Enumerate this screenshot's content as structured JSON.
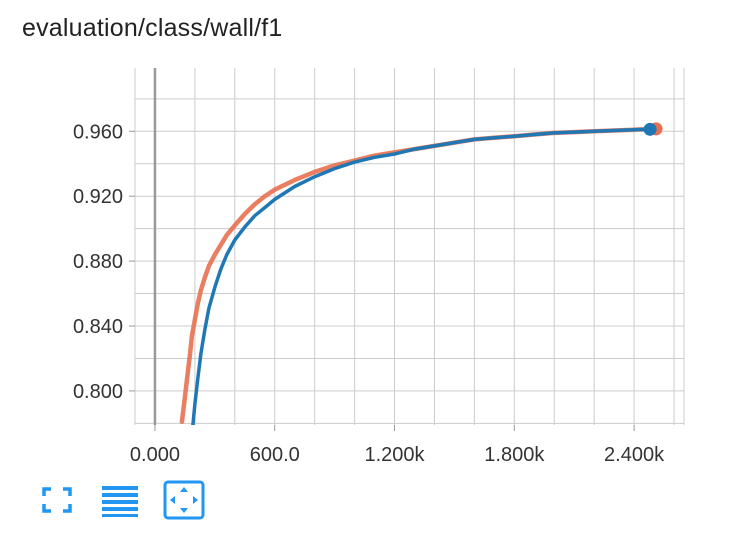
{
  "title": "evaluation/class/wall/f1",
  "toolbar": {
    "buttons": [
      {
        "name": "expand-chart-button",
        "icon": "fullscreen-icon"
      },
      {
        "name": "toggle-log-scale-button",
        "icon": "list-lines-icon"
      },
      {
        "name": "fit-domain-button",
        "icon": "fit-to-data-icon"
      }
    ]
  },
  "colors": {
    "accent": "#2196f3",
    "smoothed_series": "#1f77b4",
    "raw_series": "#e8704f",
    "grid": "#cccccc",
    "zero_line": "#999999"
  },
  "chart_data": {
    "type": "line",
    "title": "evaluation/class/wall/f1",
    "xlabel": "",
    "ylabel": "",
    "xlim": [
      -100,
      2650
    ],
    "ylim": [
      0.779,
      0.999
    ],
    "x_ticks": [
      0,
      600,
      1200,
      1800,
      2400
    ],
    "x_tick_labels": [
      "0.000",
      "600.0",
      "1.200k",
      "1.800k",
      "2.400k"
    ],
    "y_ticks": [
      0.8,
      0.84,
      0.88,
      0.92,
      0.96
    ],
    "y_tick_labels": [
      "0.800",
      "0.840",
      "0.880",
      "0.920",
      "0.960"
    ],
    "grid": true,
    "series": [
      {
        "color": "#e8704f",
        "points": [
          [
            135,
            0.781
          ],
          [
            150,
            0.796
          ],
          [
            165,
            0.812
          ],
          [
            175,
            0.822
          ],
          [
            185,
            0.834
          ],
          [
            200,
            0.844
          ],
          [
            215,
            0.854
          ],
          [
            230,
            0.862
          ],
          [
            250,
            0.87
          ],
          [
            270,
            0.877
          ],
          [
            300,
            0.884
          ],
          [
            330,
            0.89
          ],
          [
            360,
            0.896
          ],
          [
            400,
            0.902
          ],
          [
            450,
            0.909
          ],
          [
            500,
            0.915
          ],
          [
            550,
            0.92
          ],
          [
            600,
            0.924
          ],
          [
            700,
            0.93
          ],
          [
            800,
            0.935
          ],
          [
            900,
            0.939
          ],
          [
            1000,
            0.942
          ],
          [
            1100,
            0.945
          ],
          [
            1200,
            0.947
          ],
          [
            1300,
            0.949
          ],
          [
            1400,
            0.951
          ],
          [
            1500,
            0.953
          ],
          [
            1600,
            0.955
          ],
          [
            1700,
            0.956
          ],
          [
            1800,
            0.957
          ],
          [
            1900,
            0.958
          ],
          [
            2000,
            0.959
          ],
          [
            2100,
            0.9595
          ],
          [
            2200,
            0.96
          ],
          [
            2300,
            0.9605
          ],
          [
            2400,
            0.961
          ],
          [
            2510,
            0.9615
          ]
        ]
      },
      {
        "color": "#1f77b4",
        "points": [
          [
            190,
            0.779
          ],
          [
            200,
            0.792
          ],
          [
            215,
            0.808
          ],
          [
            230,
            0.823
          ],
          [
            250,
            0.838
          ],
          [
            270,
            0.851
          ],
          [
            300,
            0.864
          ],
          [
            330,
            0.875
          ],
          [
            360,
            0.884
          ],
          [
            400,
            0.893
          ],
          [
            450,
            0.901
          ],
          [
            500,
            0.908
          ],
          [
            550,
            0.913
          ],
          [
            600,
            0.918
          ],
          [
            700,
            0.926
          ],
          [
            800,
            0.932
          ],
          [
            900,
            0.937
          ],
          [
            1000,
            0.941
          ],
          [
            1100,
            0.944
          ],
          [
            1200,
            0.946
          ],
          [
            1300,
            0.949
          ],
          [
            1400,
            0.951
          ],
          [
            1500,
            0.953
          ],
          [
            1600,
            0.955
          ],
          [
            1700,
            0.956
          ],
          [
            1800,
            0.957
          ],
          [
            1900,
            0.958
          ],
          [
            2000,
            0.959
          ],
          [
            2100,
            0.9595
          ],
          [
            2200,
            0.96
          ],
          [
            2300,
            0.9605
          ],
          [
            2400,
            0.961
          ],
          [
            2480,
            0.9612
          ]
        ]
      }
    ]
  }
}
